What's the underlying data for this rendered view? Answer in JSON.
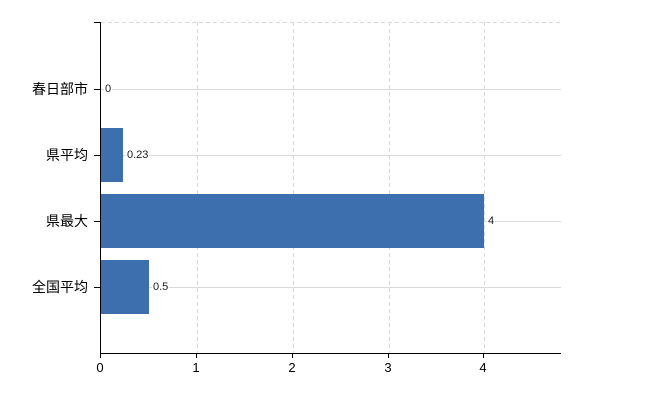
{
  "chart_data": {
    "type": "bar",
    "orientation": "horizontal",
    "title": "",
    "xlabel": "",
    "ylabel": "",
    "categories": [
      "春日部市",
      "県平均",
      "県最大",
      "全国平均"
    ],
    "values": [
      0,
      0.23,
      4,
      0.5
    ],
    "value_labels": [
      "0",
      "0.23",
      "4",
      "0.5"
    ],
    "x_ticks": [
      0,
      1,
      2,
      3,
      4
    ],
    "x_tick_labels": [
      "0",
      "1",
      "2",
      "3",
      "4"
    ],
    "xlim": [
      0,
      4.8
    ],
    "grid": true,
    "legend": false,
    "colors": {
      "bar": "#3d6fae",
      "axis": "#000000",
      "gridline": "#d9d9d9",
      "text": "#1a1a1a",
      "background": "#ffffff"
    }
  }
}
